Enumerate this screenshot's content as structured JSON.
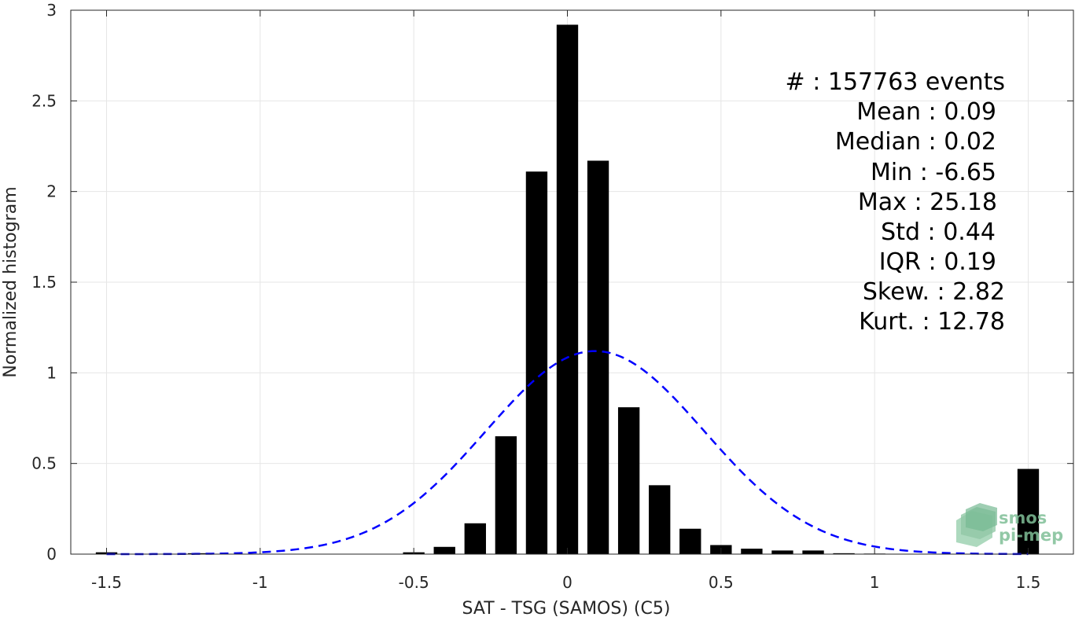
{
  "chart_data": {
    "type": "bar",
    "xlabel": "SAT - TSG (SAMOS) (C5)",
    "ylabel": "Normalized histogram",
    "xlim": [
      -1.6,
      1.6
    ],
    "ylim": [
      0,
      3
    ],
    "xticks": [
      -1.5,
      -1,
      -0.5,
      0,
      0.5,
      1,
      1.5
    ],
    "xtick_labels": [
      "-1.5",
      "-1",
      "-0.5",
      "0",
      "0.5",
      "1",
      "1.5"
    ],
    "yticks": [
      0,
      0.5,
      1,
      1.5,
      2,
      2.5,
      3
    ],
    "ytick_labels": [
      "0",
      "0.5",
      "1",
      "1.5",
      "2",
      "2.5",
      "3"
    ],
    "grid": true,
    "bar_width": 0.07,
    "bars": [
      {
        "x": -1.5,
        "y": 0.01
      },
      {
        "x": -1.2,
        "y": 0.005
      },
      {
        "x": -0.5,
        "y": 0.01
      },
      {
        "x": -0.4,
        "y": 0.04
      },
      {
        "x": -0.3,
        "y": 0.17
      },
      {
        "x": -0.2,
        "y": 0.65
      },
      {
        "x": -0.1,
        "y": 2.11
      },
      {
        "x": 0.0,
        "y": 2.92
      },
      {
        "x": 0.1,
        "y": 2.17
      },
      {
        "x": 0.2,
        "y": 0.81
      },
      {
        "x": 0.3,
        "y": 0.38
      },
      {
        "x": 0.4,
        "y": 0.14
      },
      {
        "x": 0.5,
        "y": 0.05
      },
      {
        "x": 0.6,
        "y": 0.03
      },
      {
        "x": 0.7,
        "y": 0.02
      },
      {
        "x": 0.8,
        "y": 0.02
      },
      {
        "x": 0.9,
        "y": 0.005
      },
      {
        "x": 1.0,
        "y": 0.003
      },
      {
        "x": 1.5,
        "y": 0.47
      }
    ],
    "fit_curve": {
      "type": "gaussian",
      "mean": 0.09,
      "std": 0.355,
      "amplitude": 1.12,
      "x_range": [
        -1.5,
        1.5
      ],
      "color": "#0000ff",
      "style": "dashed"
    },
    "bar_color": "#000000",
    "stats_lines": [
      "#  : 157763 events",
      "Mean : 0.09",
      "Median : 0.02",
      "Min : -6.65",
      "Max : 25.18",
      "Std : 0.44",
      "IQR : 0.19",
      "Skew. : 2.82",
      "Kurt. : 12.78"
    ],
    "logo": {
      "line1": "smos",
      "line2": "pi-mep",
      "color": "#7fbf97"
    }
  }
}
